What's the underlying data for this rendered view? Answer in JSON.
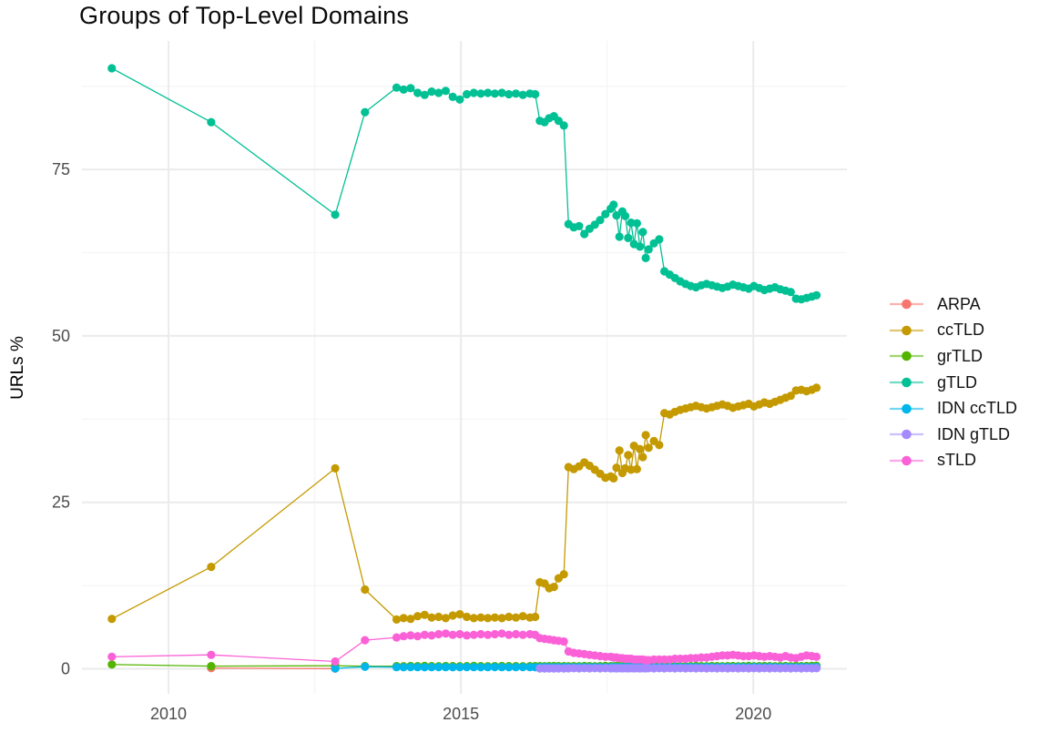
{
  "title": "Groups of Top-Level Domains",
  "axes": {
    "y_label": "URLs %",
    "x_tick_labels": [
      "2010",
      "2015",
      "2020"
    ],
    "y_tick_labels": [
      "0",
      "25",
      "50",
      "75"
    ]
  },
  "colors": {
    "background": "#ffffff",
    "grid_major": "#ebebeb",
    "grid_minor": "#f5f5f5",
    "tick_text": "#4d4d4d",
    "axis_title_text": "#000000",
    "title_text": "#0a0a0a"
  },
  "chart_data": {
    "type": "line",
    "title": "Groups of Top-Level Domains",
    "xlabel": "",
    "ylabel": "URLs %",
    "grid": true,
    "legend_position": "right",
    "x_ticks": [
      2010,
      2015,
      2020
    ],
    "y_ticks": [
      0,
      25,
      50,
      75
    ],
    "x_minor_ticks": [
      2012.5,
      2017.5
    ],
    "y_minor_ticks": [
      12.5,
      37.5,
      62.5,
      87.5
    ],
    "x_range": [
      2008.52,
      2021.6
    ],
    "y_range": [
      -3.76,
      94.3
    ],
    "x_dense_1": [
      2013.9,
      2014.02,
      2014.14,
      2014.26,
      2014.38,
      2014.5,
      2014.62,
      2014.74,
      2014.86,
      2014.98,
      2015.1,
      2015.22,
      2015.34,
      2015.46,
      2015.58,
      2015.7,
      2015.82,
      2015.94,
      2016.06,
      2016.18,
      2016.27
    ],
    "x_dense_2": [
      2016.35,
      2016.43,
      2016.51,
      2016.59,
      2016.67,
      2016.76
    ],
    "x_dense_3": [
      2016.84,
      2016.93,
      2017.02,
      2017.11,
      2017.2,
      2017.29,
      2017.38,
      2017.47,
      2017.56,
      2017.61,
      2017.66,
      2017.71,
      2017.76,
      2017.81,
      2017.86,
      2017.91,
      2017.96,
      2018.01,
      2018.06,
      2018.11,
      2018.16,
      2018.21,
      2018.3,
      2018.39,
      2018.48,
      2018.57,
      2018.66,
      2018.75,
      2018.84,
      2018.93,
      2019.02,
      2019.11,
      2019.2,
      2019.29,
      2019.38,
      2019.47,
      2019.56,
      2019.65,
      2019.74,
      2019.83,
      2019.92,
      2020.01,
      2020.1,
      2020.19,
      2020.28,
      2020.37,
      2020.46,
      2020.55,
      2020.64,
      2020.73,
      2020.82,
      2020.91,
      2021.0,
      2021.08
    ],
    "series": [
      {
        "name": "ARPA",
        "color": "#F8766D",
        "sparse": [
          [
            2010.73,
            0.1
          ],
          [
            2012.85,
            0.03
          ]
        ]
      },
      {
        "name": "ccTLD",
        "color": "#C49A00",
        "sparse": [
          [
            2009.03,
            7.5
          ],
          [
            2010.73,
            15.3
          ],
          [
            2012.85,
            30.1
          ],
          [
            2013.36,
            11.9
          ]
        ],
        "d1": [
          7.4,
          7.6,
          7.5,
          7.9,
          8.1,
          7.7,
          7.8,
          7.6,
          8.0,
          8.2,
          7.8,
          7.6,
          7.7,
          7.6,
          7.7,
          7.6,
          7.8,
          7.7,
          7.9,
          7.7,
          7.8
        ],
        "d2": [
          13.0,
          12.8,
          12.1,
          12.3,
          13.6,
          14.2
        ],
        "d3": [
          30.3,
          30.0,
          30.4,
          31.0,
          30.5,
          29.9,
          29.3,
          28.7,
          28.9,
          28.6,
          30.2,
          32.8,
          29.4,
          30.1,
          32.1,
          29.9,
          33.5,
          30.0,
          33.0,
          31.8,
          35.1,
          33.2,
          34.2,
          33.6,
          38.4,
          38.2,
          38.6,
          38.9,
          39.1,
          39.3,
          39.5,
          39.3,
          39.1,
          39.3,
          39.5,
          39.7,
          39.5,
          39.2,
          39.4,
          39.6,
          39.8,
          39.4,
          39.7,
          40.0,
          39.8,
          40.1,
          40.4,
          40.7,
          41.0,
          41.8,
          41.9,
          41.7,
          41.9,
          42.2
        ]
      },
      {
        "name": "grTLD",
        "color": "#53B400",
        "sparse": [
          [
            2009.03,
            0.65
          ],
          [
            2010.73,
            0.4
          ],
          [
            2012.85,
            0.45
          ],
          [
            2013.36,
            0.4
          ]
        ],
        "d1": [
          0.4,
          0.38,
          0.41,
          0.4,
          0.42,
          0.4,
          0.39,
          0.41,
          0.4,
          0.38,
          0.4,
          0.42,
          0.4,
          0.39,
          0.4,
          0.41,
          0.4,
          0.4,
          0.39,
          0.4,
          0.4
        ],
        "d2": [
          0.4,
          0.39,
          0.4,
          0.41,
          0.4,
          0.4
        ],
        "d3": [
          0.38,
          0.4,
          0.39,
          0.41,
          0.4,
          0.38,
          0.4,
          0.42,
          0.4,
          0.39,
          0.41,
          0.4,
          0.38,
          0.4,
          0.41,
          0.39,
          0.4,
          0.42,
          0.4,
          0.38,
          0.4,
          0.41,
          0.39,
          0.4,
          0.38,
          0.4,
          0.41,
          0.4,
          0.39,
          0.4,
          0.42,
          0.4,
          0.38,
          0.41,
          0.4,
          0.39,
          0.4,
          0.41,
          0.38,
          0.4,
          0.42,
          0.39,
          0.4,
          0.41,
          0.4,
          0.38,
          0.4,
          0.41,
          0.39,
          0.42,
          0.4,
          0.41,
          0.43,
          0.45
        ]
      },
      {
        "name": "gTLD",
        "color": "#00C094",
        "sparse": [
          [
            2009.03,
            90.2
          ],
          [
            2010.73,
            82.1
          ],
          [
            2012.85,
            68.2
          ],
          [
            2013.36,
            83.6
          ]
        ],
        "d1": [
          87.3,
          87.0,
          87.2,
          86.5,
          86.2,
          86.7,
          86.5,
          86.8,
          85.9,
          85.5,
          86.3,
          86.5,
          86.4,
          86.5,
          86.4,
          86.5,
          86.3,
          86.4,
          86.2,
          86.4,
          86.3
        ],
        "d2": [
          82.3,
          82.1,
          82.7,
          83.0,
          82.3,
          81.6
        ],
        "d3": [
          66.8,
          66.3,
          66.5,
          65.3,
          66.1,
          66.7,
          67.4,
          68.3,
          69.1,
          69.7,
          68.1,
          64.9,
          68.7,
          68.0,
          64.7,
          67.0,
          63.8,
          66.9,
          63.4,
          65.6,
          61.7,
          63.0,
          63.9,
          64.5,
          59.7,
          59.2,
          58.7,
          58.2,
          57.8,
          57.5,
          57.3,
          57.6,
          57.8,
          57.6,
          57.4,
          57.2,
          57.4,
          57.7,
          57.5,
          57.3,
          57.1,
          57.5,
          57.2,
          56.9,
          57.1,
          57.3,
          57.0,
          56.8,
          56.6,
          55.6,
          55.5,
          55.7,
          55.9,
          56.1
        ]
      },
      {
        "name": "IDN ccTLD",
        "color": "#00B6EB",
        "sparse": [
          [
            2012.85,
            0.05
          ],
          [
            2013.36,
            0.3
          ]
        ],
        "d1": [
          0.25,
          0.24,
          0.26,
          0.25,
          0.24,
          0.25,
          0.26,
          0.25,
          0.24,
          0.25,
          0.26,
          0.25,
          0.24,
          0.25,
          0.26,
          0.25,
          0.24,
          0.25,
          0.26,
          0.25,
          0.24
        ],
        "d2": [
          0.25,
          0.26,
          0.25,
          0.24,
          0.25,
          0.26
        ],
        "d3": [
          0.25,
          0.24,
          0.26,
          0.25,
          0.24,
          0.26,
          0.25,
          0.24,
          0.26,
          0.25,
          0.24,
          0.26,
          0.25,
          0.24,
          0.26,
          0.25,
          0.24,
          0.26,
          0.25,
          0.24,
          0.26,
          0.25,
          0.24,
          0.26,
          0.25,
          0.24,
          0.26,
          0.25,
          0.24,
          0.26,
          0.25,
          0.24,
          0.26,
          0.25,
          0.24,
          0.26,
          0.25,
          0.24,
          0.26,
          0.25,
          0.24,
          0.26,
          0.25,
          0.24,
          0.26,
          0.25,
          0.24,
          0.26,
          0.25,
          0.24,
          0.26,
          0.25,
          0.24,
          0.26
        ]
      },
      {
        "name": "IDN gTLD",
        "color": "#A58AFF",
        "sparse": [],
        "d2": [
          0.05,
          0.06,
          0.05,
          0.06,
          0.05,
          0.06
        ],
        "d3": [
          0.07,
          0.08,
          0.07,
          0.08,
          0.07,
          0.08,
          0.07,
          0.08,
          0.07,
          0.08,
          0.07,
          0.08,
          0.07,
          0.08,
          0.07,
          0.08,
          0.07,
          0.08,
          0.07,
          0.08,
          0.07,
          0.08,
          0.07,
          0.08,
          0.07,
          0.08,
          0.07,
          0.08,
          0.07,
          0.08,
          0.07,
          0.08,
          0.07,
          0.08,
          0.07,
          0.08,
          0.07,
          0.08,
          0.07,
          0.08,
          0.07,
          0.08,
          0.07,
          0.08,
          0.07,
          0.08,
          0.07,
          0.08,
          0.07,
          0.08,
          0.07,
          0.08,
          0.07,
          0.08
        ]
      },
      {
        "name": "sTLD",
        "color": "#FB61D7",
        "sparse": [
          [
            2009.03,
            1.8
          ],
          [
            2010.73,
            2.1
          ],
          [
            2012.85,
            1.1
          ],
          [
            2013.36,
            4.3
          ]
        ],
        "d1": [
          4.7,
          4.9,
          5.0,
          4.9,
          5.1,
          5.0,
          5.2,
          5.3,
          5.1,
          5.2,
          5.0,
          5.1,
          5.2,
          5.1,
          5.2,
          5.3,
          5.1,
          5.2,
          5.1,
          5.2,
          5.1
        ],
        "d2": [
          4.6,
          4.5,
          4.4,
          4.3,
          4.2,
          4.1
        ],
        "d3": [
          2.6,
          2.4,
          2.3,
          2.2,
          2.1,
          2.0,
          1.9,
          1.8,
          1.8,
          1.7,
          1.7,
          1.6,
          1.6,
          1.5,
          1.5,
          1.5,
          1.4,
          1.4,
          1.4,
          1.4,
          1.3,
          1.3,
          1.4,
          1.4,
          1.4,
          1.4,
          1.5,
          1.5,
          1.5,
          1.6,
          1.6,
          1.7,
          1.7,
          1.8,
          1.9,
          2.0,
          2.0,
          2.1,
          2.0,
          1.9,
          1.9,
          2.0,
          1.9,
          1.8,
          1.9,
          1.8,
          1.7,
          1.9,
          1.7,
          1.6,
          1.8,
          2.0,
          1.9,
          1.8
        ]
      }
    ]
  }
}
